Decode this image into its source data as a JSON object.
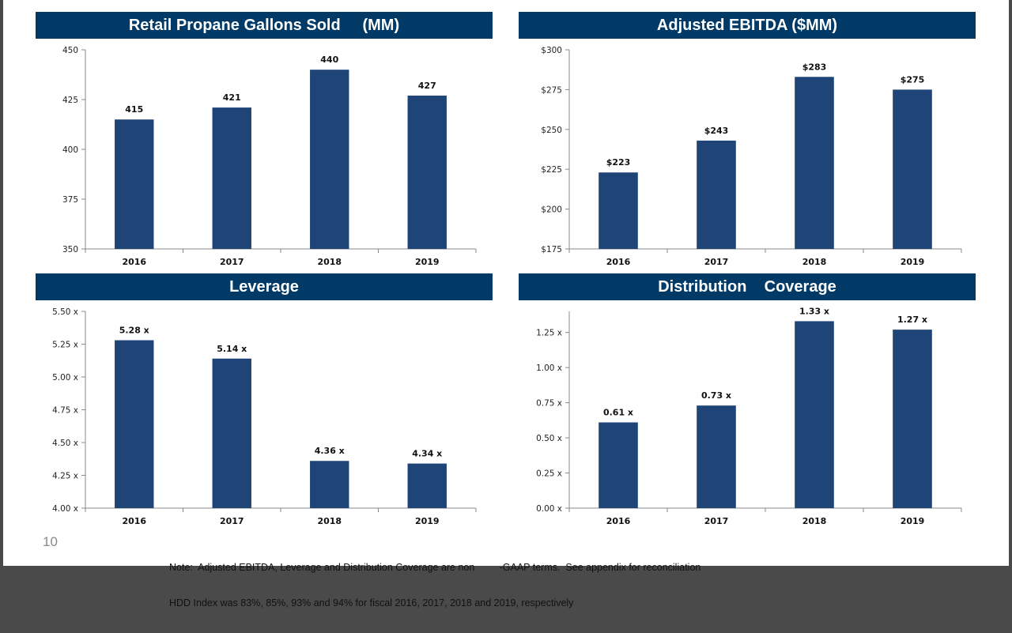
{
  "page_number": "10",
  "note": {
    "line1": "Note:  Adjusted EBITDA, Leverage and Distribution Coverage are non         -GAAP terms.  See appendix for reconciliation",
    "line2": "HDD Index was 83%, 85%, 93% and 94% for fiscal 2016, 2017, 2018 and 2019, respectively"
  },
  "colors": {
    "bar": "#1f4478",
    "title_bg": "#013a66",
    "axis": "#888888"
  },
  "chart_data": [
    {
      "type": "bar",
      "title": "Retail Propane Gallons Sold     (MM)",
      "categories": [
        "2016",
        "2017",
        "2018",
        "2019"
      ],
      "values": [
        415,
        421,
        440,
        427
      ],
      "value_labels": [
        "415",
        "421",
        "440",
        "427"
      ],
      "ylim": [
        350,
        450
      ],
      "yticks": [
        350,
        375,
        400,
        425,
        450
      ],
      "ytick_labels": [
        "350",
        "375",
        "400",
        "425",
        "450"
      ]
    },
    {
      "type": "bar",
      "title": "Adjusted EBITDA ($MM)",
      "categories": [
        "2016",
        "2017",
        "2018",
        "2019"
      ],
      "values": [
        223,
        243,
        283,
        275
      ],
      "value_labels": [
        "$223",
        "$243",
        "$283",
        "$275"
      ],
      "ylim": [
        175,
        300
      ],
      "yticks": [
        175,
        200,
        225,
        250,
        275,
        300
      ],
      "ytick_labels": [
        "$175",
        "$200",
        "$225",
        "$250",
        "$275",
        "$300"
      ]
    },
    {
      "type": "bar",
      "title": "Leverage",
      "categories": [
        "2016",
        "2017",
        "2018",
        "2019"
      ],
      "values": [
        5.28,
        5.14,
        4.36,
        4.34
      ],
      "value_labels": [
        "5.28 x",
        "5.14 x",
        "4.36 x",
        "4.34 x"
      ],
      "ylim": [
        4.0,
        5.5
      ],
      "yticks": [
        4.0,
        4.25,
        4.5,
        4.75,
        5.0,
        5.25,
        5.5
      ],
      "ytick_labels": [
        "4.00 x",
        "4.25 x",
        "4.50 x",
        "4.75 x",
        "5.00 x",
        "5.25 x",
        "5.50 x"
      ]
    },
    {
      "type": "bar",
      "title": "Distribution    Coverage",
      "categories": [
        "2016",
        "2017",
        "2018",
        "2019"
      ],
      "values": [
        0.61,
        0.73,
        1.33,
        1.27
      ],
      "value_labels": [
        "0.61 x",
        "0.73 x",
        "1.33 x",
        "1.27 x"
      ],
      "ylim": [
        0.0,
        1.4
      ],
      "yticks": [
        0.0,
        0.25,
        0.5,
        0.75,
        1.0,
        1.25
      ],
      "ytick_labels": [
        "0.00 x",
        "0.25 x",
        "0.50 x",
        "0.75 x",
        "1.00 x",
        "1.25 x"
      ]
    }
  ]
}
